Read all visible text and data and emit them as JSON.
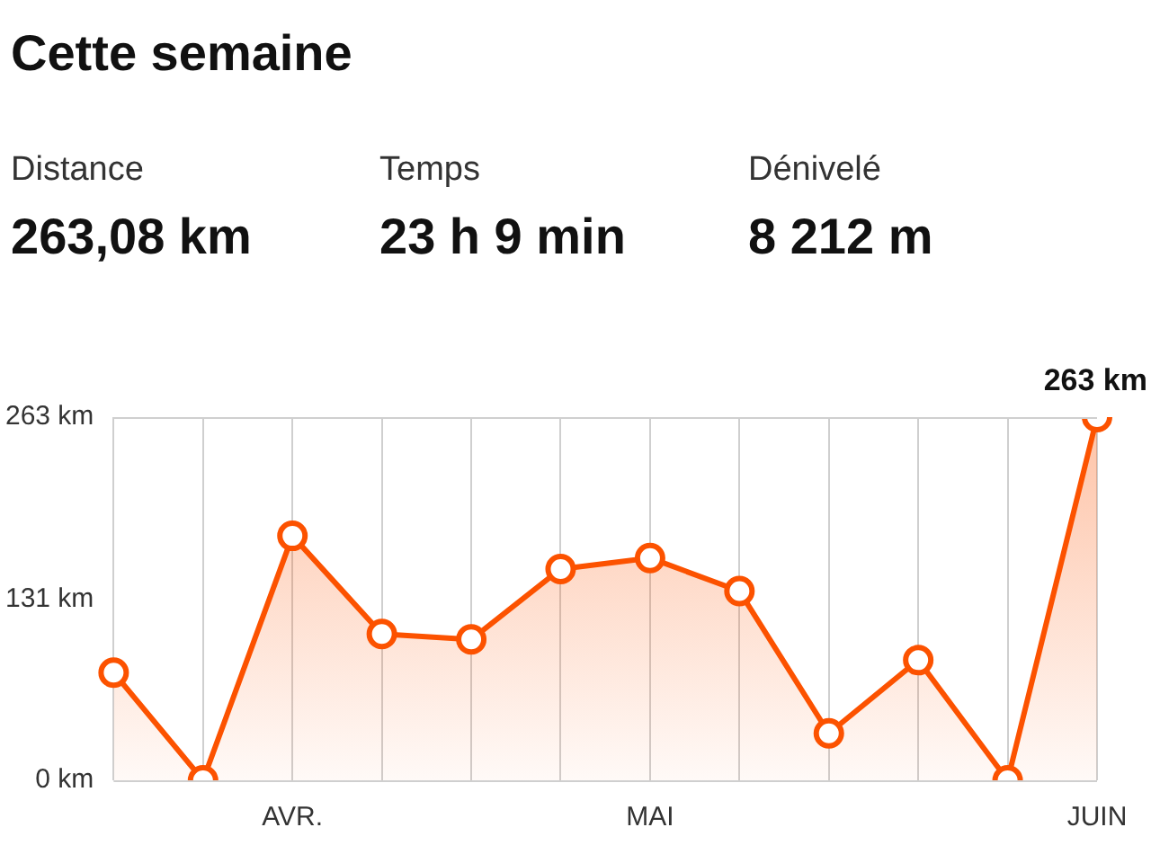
{
  "chart_data": {
    "type": "area",
    "title": "Cette semaine",
    "annotations": [
      "Distance",
      "263,08 km",
      "Temps",
      "23 h  9 min",
      "Dénivelé",
      "8 212 m"
    ],
    "categories": [
      null,
      null,
      "AVR.",
      null,
      null,
      null,
      "MAI",
      null,
      null,
      null,
      null,
      "JUIN"
    ],
    "series": [
      {
        "color": "#fc5200",
        "values": [
          78,
          0,
          177,
          106,
          102,
          153,
          161,
          137,
          34,
          87,
          0,
          263
        ],
        "value_labels": [
          null,
          null,
          null,
          null,
          null,
          null,
          null,
          null,
          null,
          null,
          null,
          "263 km"
        ]
      }
    ],
    "ylim": [
      0,
      263
    ],
    "yticks": [
      {
        "value": 0,
        "label": "0 km"
      },
      {
        "value": 131,
        "label": "131 km"
      },
      {
        "value": 263,
        "label": "263 km"
      }
    ],
    "grid": "x",
    "marker": "circle",
    "legend": false
  }
}
